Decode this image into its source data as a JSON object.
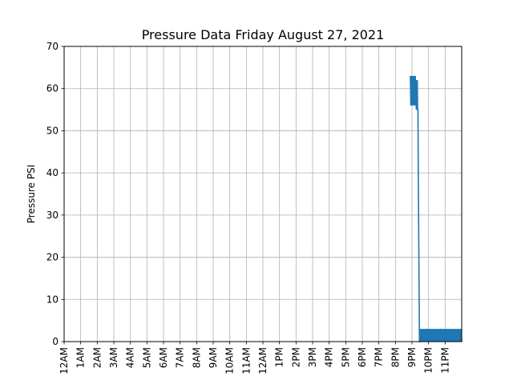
{
  "chart_data": {
    "type": "line",
    "title": "Pressure Data Friday August 27, 2021",
    "xlabel": "",
    "ylabel": "Pressure PSI",
    "ylim": [
      0,
      70
    ],
    "xlim_hours": [
      0,
      24
    ],
    "yticks": [
      0,
      10,
      20,
      30,
      40,
      50,
      60,
      70
    ],
    "xtick_labels": [
      "12AM",
      "1AM",
      "2AM",
      "3AM",
      "4AM",
      "5AM",
      "6AM",
      "7AM",
      "8AM",
      "9AM",
      "10AM",
      "11AM",
      "12AM",
      "1PM",
      "2PM",
      "3PM",
      "4PM",
      "5PM",
      "6PM",
      "7PM",
      "8PM",
      "9PM",
      "10PM",
      "11PM"
    ],
    "grid": true,
    "series": [
      {
        "color": "#1f77b4",
        "x_hours": [
          20.9,
          20.93,
          20.96,
          20.99,
          21.02,
          21.05,
          21.08,
          21.11,
          21.14,
          21.17,
          21.2,
          21.22,
          21.24,
          21.26,
          21.28,
          21.3,
          21.32,
          21.34,
          21.36,
          21.38,
          21.45,
          21.48,
          21.5,
          21.53,
          21.56,
          21.6,
          21.64,
          21.68,
          21.72,
          21.76,
          21.8,
          21.84,
          21.88,
          21.92,
          21.96,
          22.0,
          22.04,
          22.08,
          22.12,
          22.16,
          22.2,
          22.24,
          22.28,
          22.32,
          22.36,
          22.4,
          22.44,
          22.48,
          22.52,
          22.56,
          22.6,
          22.64,
          22.68,
          22.72,
          22.76,
          22.8,
          22.84,
          22.88,
          22.92,
          22.96,
          23.0,
          23.04,
          23.08,
          23.12,
          23.16,
          23.2,
          23.24,
          23.28,
          23.32,
          23.36,
          23.4,
          23.44,
          23.48,
          23.52,
          23.56,
          23.6,
          23.64,
          23.68,
          23.72,
          23.76,
          23.8,
          23.84,
          23.88,
          23.92,
          23.96,
          24.0
        ],
        "y": [
          63,
          56,
          63,
          56,
          63,
          56,
          63,
          56,
          63,
          56,
          63,
          56,
          62,
          55,
          62,
          55,
          62,
          55,
          55,
          40,
          0,
          0,
          3,
          0,
          3,
          0,
          3,
          0,
          3,
          0,
          3,
          0,
          3,
          0,
          3,
          0,
          3,
          0,
          3,
          0,
          3,
          0,
          3,
          0,
          3,
          0,
          3,
          0,
          3,
          0,
          3,
          0,
          3,
          0,
          3,
          0,
          3,
          0,
          3,
          0,
          3,
          0,
          3,
          0,
          3,
          0,
          3,
          0,
          3,
          0,
          3,
          0,
          3,
          0,
          3,
          0,
          3,
          0,
          3,
          0,
          3,
          0,
          3,
          0,
          3,
          0
        ]
      }
    ]
  }
}
